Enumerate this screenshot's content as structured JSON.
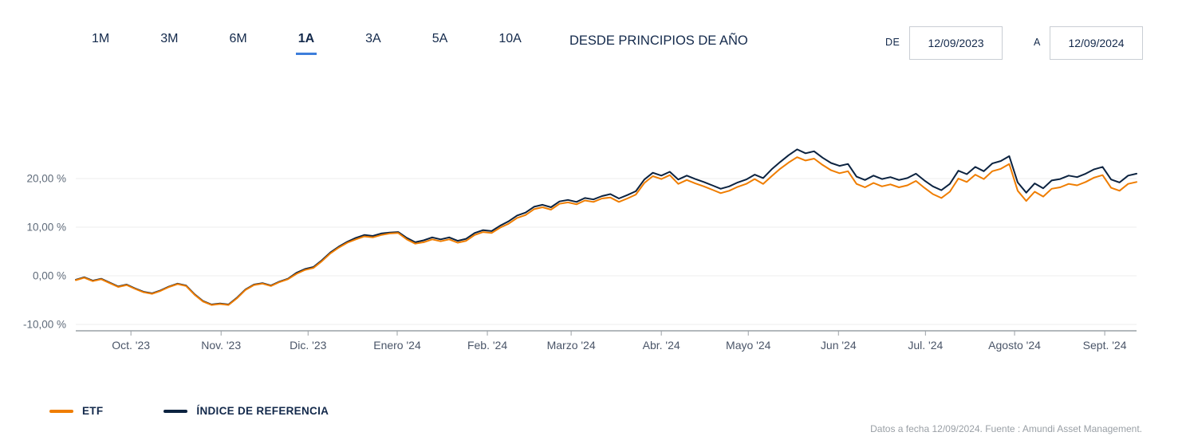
{
  "toolbar": {
    "ranges": [
      {
        "label": "1M",
        "active": false
      },
      {
        "label": "3M",
        "active": false
      },
      {
        "label": "6M",
        "active": false
      },
      {
        "label": "1A",
        "active": true
      },
      {
        "label": "3A",
        "active": false
      },
      {
        "label": "5A",
        "active": false
      },
      {
        "label": "10A",
        "active": false
      }
    ],
    "ytd_label": "DESDE PRINCIPIOS DE AÑO",
    "from_label": "DE",
    "to_label": "A",
    "from_value": "12/09/2023",
    "to_value": "12/09/2024"
  },
  "legend": [
    {
      "name": "ETF",
      "color": "#ef7d00"
    },
    {
      "name": "ÍNDICE DE REFERENCIA",
      "color": "#0c2340"
    }
  ],
  "footer": {
    "text": "Datos a fecha 12/09/2024. Fuente : Amundi Asset Management."
  },
  "colors": {
    "accent_underline": "#3d7edb",
    "navy_text": "#13294b",
    "etf_line": "#ef7d00",
    "benchmark_line": "#0c2340"
  },
  "chart_data": {
    "type": "line",
    "title": "",
    "xlabel": "",
    "ylabel": "",
    "ylim": [
      -11.3,
      32
    ],
    "grid": true,
    "legend_position": "bottom-left",
    "y_ticks": [
      {
        "value": 20,
        "label": "20,00 %"
      },
      {
        "value": 10,
        "label": "10,00 %"
      },
      {
        "value": 0,
        "label": "0,00 %"
      },
      {
        "value": -10,
        "label": "-10,00 %"
      }
    ],
    "x_ticks": [
      {
        "pos": 0.052,
        "label": "Oct. '23"
      },
      {
        "pos": 0.137,
        "label": "Nov. '23"
      },
      {
        "pos": 0.219,
        "label": "Dic. '23"
      },
      {
        "pos": 0.303,
        "label": "Enero '24"
      },
      {
        "pos": 0.388,
        "label": "Feb. '24"
      },
      {
        "pos": 0.467,
        "label": "Marzo '24"
      },
      {
        "pos": 0.552,
        "label": "Abr. '24"
      },
      {
        "pos": 0.634,
        "label": "Mayo '24"
      },
      {
        "pos": 0.719,
        "label": "Jun '24"
      },
      {
        "pos": 0.801,
        "label": "Jul. '24"
      },
      {
        "pos": 0.885,
        "label": "Agosto '24"
      },
      {
        "pos": 0.97,
        "label": "Sept. '24"
      }
    ],
    "x_range": {
      "start": "12/09/2023",
      "end": "12/09/2024"
    },
    "series": [
      {
        "name": "ETF",
        "color": "#ef7d00",
        "values": [
          -0.9,
          -0.4,
          -1.1,
          -0.7,
          -1.5,
          -2.3,
          -1.9,
          -2.7,
          -3.4,
          -3.7,
          -3.1,
          -2.3,
          -1.7,
          -2.1,
          -3.9,
          -5.3,
          -6.0,
          -5.8,
          -6.0,
          -4.6,
          -2.9,
          -1.9,
          -1.6,
          -2.1,
          -1.3,
          -0.7,
          0.4,
          1.2,
          1.6,
          3.0,
          4.6,
          5.8,
          6.8,
          7.5,
          8.1,
          7.9,
          8.4,
          8.7,
          8.8,
          7.5,
          6.6,
          6.9,
          7.5,
          7.1,
          7.5,
          6.8,
          7.2,
          8.4,
          9.0,
          8.8,
          9.9,
          10.7,
          11.9,
          12.5,
          13.7,
          14.1,
          13.6,
          14.8,
          15.1,
          14.7,
          15.5,
          15.2,
          15.9,
          16.1,
          15.2,
          15.9,
          16.7,
          19.1,
          20.5,
          19.9,
          20.7,
          18.9,
          19.7,
          19.0,
          18.4,
          17.7,
          17.0,
          17.5,
          18.3,
          18.9,
          19.9,
          18.9,
          20.5,
          22.0,
          23.3,
          24.4,
          23.7,
          24.1,
          22.8,
          21.7,
          21.1,
          21.5,
          18.9,
          18.2,
          19.1,
          18.4,
          18.8,
          18.2,
          18.6,
          19.5,
          18.1,
          16.8,
          16.0,
          17.3,
          20.0,
          19.3,
          20.8,
          19.9,
          21.5,
          22.0,
          23.0,
          17.5,
          15.4,
          17.3,
          16.3,
          17.9,
          18.2,
          18.9,
          18.6,
          19.3,
          20.2,
          20.7,
          18.1,
          17.5,
          18.9,
          19.3
        ]
      },
      {
        "name": "ÍNDICE DE REFERENCIA",
        "color": "#0c2340",
        "values": [
          -0.8,
          -0.3,
          -1.0,
          -0.6,
          -1.4,
          -2.2,
          -1.8,
          -2.6,
          -3.3,
          -3.6,
          -3.0,
          -2.2,
          -1.6,
          -2.0,
          -3.8,
          -5.2,
          -5.9,
          -5.7,
          -5.9,
          -4.5,
          -2.8,
          -1.8,
          -1.5,
          -2.0,
          -1.2,
          -0.6,
          0.6,
          1.4,
          1.8,
          3.2,
          4.8,
          6.0,
          7.0,
          7.8,
          8.4,
          8.2,
          8.7,
          8.9,
          9.0,
          7.8,
          6.9,
          7.3,
          7.9,
          7.5,
          7.9,
          7.2,
          7.6,
          8.8,
          9.4,
          9.2,
          10.3,
          11.2,
          12.4,
          13.0,
          14.2,
          14.6,
          14.1,
          15.3,
          15.6,
          15.2,
          16.0,
          15.7,
          16.4,
          16.8,
          15.9,
          16.6,
          17.4,
          19.8,
          21.2,
          20.6,
          21.4,
          19.8,
          20.6,
          19.9,
          19.3,
          18.6,
          17.9,
          18.4,
          19.2,
          19.8,
          20.8,
          20.1,
          21.9,
          23.4,
          24.8,
          26.0,
          25.2,
          25.6,
          24.3,
          23.2,
          22.6,
          23.0,
          20.4,
          19.7,
          20.6,
          19.9,
          20.3,
          19.7,
          20.1,
          21.0,
          19.6,
          18.4,
          17.6,
          18.9,
          21.6,
          20.9,
          22.4,
          21.5,
          23.1,
          23.6,
          24.6,
          19.2,
          17.1,
          19.0,
          18.0,
          19.6,
          19.9,
          20.6,
          20.3,
          21.0,
          21.9,
          22.4,
          19.8,
          19.2,
          20.6,
          21.0
        ]
      }
    ]
  }
}
